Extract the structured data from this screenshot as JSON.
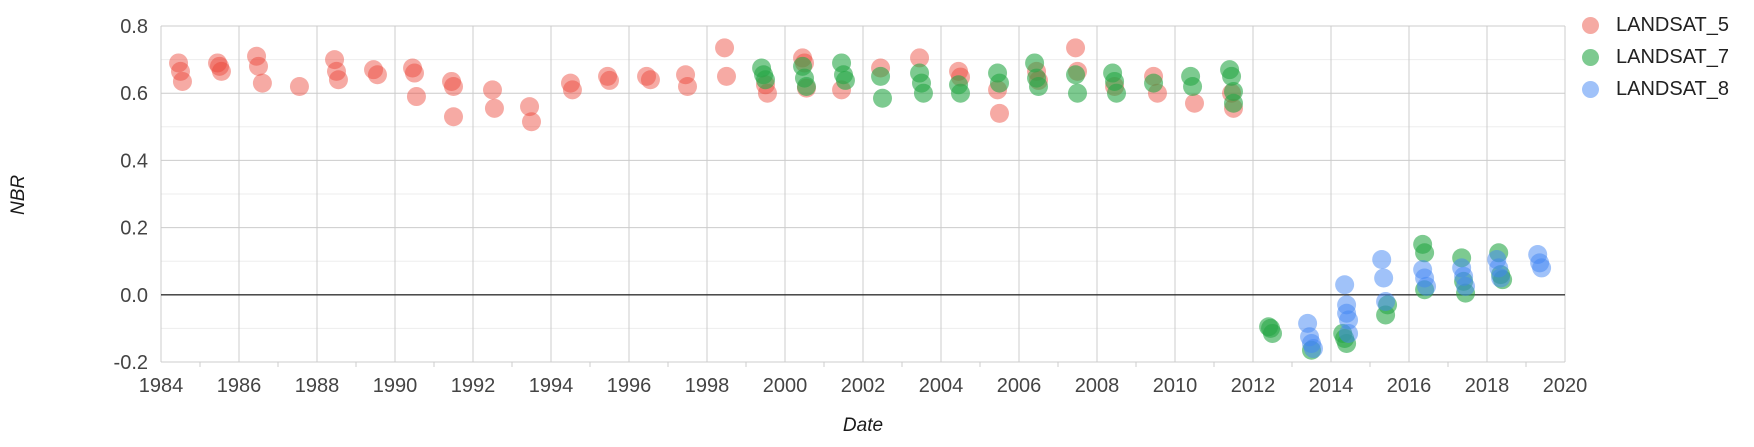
{
  "chart_data": {
    "type": "scatter",
    "title": "",
    "xlabel": "Date",
    "ylabel": "NBR",
    "xlim": [
      1984,
      2020
    ],
    "ylim": [
      -0.2,
      0.8
    ],
    "x_ticks_major": [
      1984,
      1986,
      1988,
      1990,
      1992,
      1994,
      1996,
      1998,
      2000,
      2002,
      2004,
      2006,
      2008,
      2010,
      2012,
      2014,
      2016,
      2018,
      2020
    ],
    "x_ticks_minor": [
      1985,
      1987,
      1989,
      1991,
      1993,
      1995,
      1997,
      1999,
      2001,
      2003,
      2005,
      2007,
      2009,
      2011,
      2013,
      2015,
      2017,
      2019
    ],
    "y_ticks_major": [
      0.8,
      0.6,
      0.4,
      0.2,
      0.0,
      -0.2
    ],
    "y_ticks_minor": [
      0.7,
      0.5,
      0.3,
      0.1,
      -0.1
    ],
    "grid": true,
    "legend_position": "right",
    "zero_line": 0.0,
    "colors": {
      "grid_major": "#cccccc",
      "grid_minor": "#ededed",
      "zero_line": "#333333",
      "tick_text": "#444444"
    },
    "series": [
      {
        "name": "LANDSAT_5",
        "color": "rgba(234,67,53,0.45)",
        "swatch": "#F5AAA3",
        "points": [
          [
            1984.45,
            0.69
          ],
          [
            1984.5,
            0.665
          ],
          [
            1984.55,
            0.635
          ],
          [
            1985.45,
            0.69
          ],
          [
            1985.5,
            0.68
          ],
          [
            1985.55,
            0.665
          ],
          [
            1986.45,
            0.71
          ],
          [
            1986.5,
            0.68
          ],
          [
            1986.6,
            0.63
          ],
          [
            1987.55,
            0.62
          ],
          [
            1988.45,
            0.7
          ],
          [
            1988.5,
            0.665
          ],
          [
            1988.55,
            0.64
          ],
          [
            1989.45,
            0.67
          ],
          [
            1989.55,
            0.655
          ],
          [
            1990.45,
            0.675
          ],
          [
            1990.5,
            0.66
          ],
          [
            1990.55,
            0.59
          ],
          [
            1991.45,
            0.635
          ],
          [
            1991.5,
            0.62
          ],
          [
            1991.5,
            0.53
          ],
          [
            1992.5,
            0.61
          ],
          [
            1992.55,
            0.555
          ],
          [
            1993.45,
            0.56
          ],
          [
            1993.5,
            0.515
          ],
          [
            1994.5,
            0.63
          ],
          [
            1994.55,
            0.61
          ],
          [
            1995.45,
            0.65
          ],
          [
            1995.5,
            0.638
          ],
          [
            1996.45,
            0.65
          ],
          [
            1996.55,
            0.64
          ],
          [
            1997.45,
            0.655
          ],
          [
            1997.5,
            0.62
          ],
          [
            1998.45,
            0.735
          ],
          [
            1998.5,
            0.65
          ],
          [
            1999.5,
            0.625
          ],
          [
            1999.55,
            0.6
          ],
          [
            2000.45,
            0.705
          ],
          [
            2000.5,
            0.69
          ],
          [
            2000.55,
            0.615
          ],
          [
            2001.45,
            0.61
          ],
          [
            2002.45,
            0.675
          ],
          [
            2003.45,
            0.705
          ],
          [
            2004.45,
            0.665
          ],
          [
            2004.5,
            0.648
          ],
          [
            2005.45,
            0.61
          ],
          [
            2005.5,
            0.54
          ],
          [
            2006.45,
            0.665
          ],
          [
            2006.5,
            0.638
          ],
          [
            2007.45,
            0.735
          ],
          [
            2007.5,
            0.665
          ],
          [
            2008.45,
            0.62
          ],
          [
            2009.45,
            0.65
          ],
          [
            2009.55,
            0.6
          ],
          [
            2010.5,
            0.57
          ],
          [
            2011.45,
            0.6
          ],
          [
            2011.5,
            0.555
          ]
        ]
      },
      {
        "name": "LANDSAT_7",
        "color": "rgba(38,166,70,0.6)",
        "swatch": "#7DCA90",
        "points": [
          [
            1999.4,
            0.675
          ],
          [
            1999.45,
            0.655
          ],
          [
            1999.5,
            0.64
          ],
          [
            2000.45,
            0.68
          ],
          [
            2000.5,
            0.645
          ],
          [
            2000.55,
            0.62
          ],
          [
            2001.45,
            0.69
          ],
          [
            2001.5,
            0.655
          ],
          [
            2001.55,
            0.638
          ],
          [
            2002.45,
            0.65
          ],
          [
            2002.5,
            0.585
          ],
          [
            2003.45,
            0.66
          ],
          [
            2003.5,
            0.63
          ],
          [
            2003.55,
            0.6
          ],
          [
            2004.45,
            0.625
          ],
          [
            2004.5,
            0.6
          ],
          [
            2005.45,
            0.66
          ],
          [
            2005.5,
            0.63
          ],
          [
            2006.4,
            0.69
          ],
          [
            2006.45,
            0.645
          ],
          [
            2006.5,
            0.62
          ],
          [
            2007.45,
            0.655
          ],
          [
            2007.5,
            0.6
          ],
          [
            2008.4,
            0.66
          ],
          [
            2008.45,
            0.635
          ],
          [
            2008.5,
            0.6
          ],
          [
            2009.45,
            0.63
          ],
          [
            2010.4,
            0.65
          ],
          [
            2010.45,
            0.62
          ],
          [
            2011.4,
            0.67
          ],
          [
            2011.45,
            0.65
          ],
          [
            2011.5,
            0.605
          ],
          [
            2011.5,
            0.57
          ],
          [
            2012.4,
            -0.095
          ],
          [
            2012.45,
            -0.1
          ],
          [
            2012.5,
            -0.115
          ],
          [
            2013.5,
            -0.165
          ],
          [
            2014.3,
            -0.115
          ],
          [
            2014.35,
            -0.13
          ],
          [
            2014.4,
            -0.145
          ],
          [
            2015.4,
            -0.06
          ],
          [
            2015.45,
            -0.03
          ],
          [
            2016.35,
            0.15
          ],
          [
            2016.4,
            0.125
          ],
          [
            2016.4,
            0.015
          ],
          [
            2017.35,
            0.11
          ],
          [
            2017.4,
            0.04
          ],
          [
            2017.45,
            0.005
          ],
          [
            2018.3,
            0.125
          ],
          [
            2018.35,
            0.06
          ],
          [
            2018.4,
            0.045
          ]
        ]
      },
      {
        "name": "LANDSAT_8",
        "color": "rgba(66,133,244,0.5)",
        "swatch": "#A0C2F9",
        "points": [
          [
            2013.4,
            -0.085
          ],
          [
            2013.45,
            -0.125
          ],
          [
            2013.5,
            -0.145
          ],
          [
            2013.55,
            -0.16
          ],
          [
            2014.35,
            0.03
          ],
          [
            2014.4,
            -0.03
          ],
          [
            2014.4,
            -0.055
          ],
          [
            2014.45,
            -0.075
          ],
          [
            2014.45,
            -0.115
          ],
          [
            2015.3,
            0.105
          ],
          [
            2015.35,
            0.05
          ],
          [
            2015.4,
            -0.02
          ],
          [
            2016.35,
            0.075
          ],
          [
            2016.4,
            0.05
          ],
          [
            2016.45,
            0.025
          ],
          [
            2017.35,
            0.08
          ],
          [
            2017.4,
            0.055
          ],
          [
            2017.45,
            0.025
          ],
          [
            2018.25,
            0.105
          ],
          [
            2018.3,
            0.08
          ],
          [
            2018.35,
            0.05
          ],
          [
            2019.3,
            0.12
          ],
          [
            2019.35,
            0.095
          ],
          [
            2019.4,
            0.08
          ]
        ]
      }
    ]
  },
  "legend": {
    "items": [
      {
        "label": "LANDSAT_5"
      },
      {
        "label": "LANDSAT_7"
      },
      {
        "label": "LANDSAT_8"
      }
    ]
  }
}
